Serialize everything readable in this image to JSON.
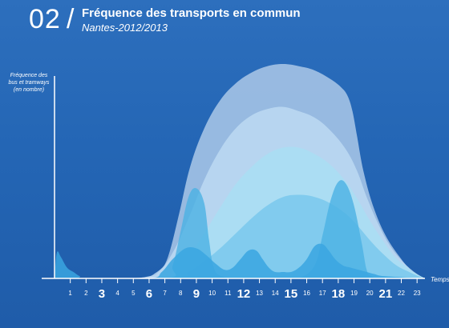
{
  "header": {
    "number": "02",
    "slash": "/",
    "title": "Fréquence des transports en commun",
    "subtitle": "Nantes-2012/2013"
  },
  "colors": {
    "background": "#2466b5",
    "axis": "#ffffff"
  },
  "chart_data": {
    "type": "area",
    "ylabel": [
      "Fréquence des",
      "bus et tramways",
      "(en nombre)"
    ],
    "xlabel": "Temps",
    "x": [
      0,
      1,
      2,
      3,
      4,
      5,
      6,
      7,
      8,
      9,
      10,
      11,
      12,
      13,
      14,
      15,
      16,
      17,
      18,
      19,
      20,
      21,
      22,
      23
    ],
    "tick_labels": [
      "1",
      "2",
      "3",
      "4",
      "5",
      "6",
      "7",
      "8",
      "9",
      "10",
      "11",
      "12",
      "13",
      "14",
      "15",
      "16",
      "17",
      "18",
      "19",
      "20",
      "21",
      "22",
      "23"
    ],
    "bold_ticks": [
      "3",
      "6",
      "9",
      "12",
      "15",
      "18",
      "21"
    ],
    "xlim": [
      0,
      23.5
    ],
    "ylim": [
      0,
      100
    ],
    "grid": false,
    "series": [
      {
        "color": "#a4c3e6",
        "opacity": 0.9,
        "x": [
          0,
          4.5,
          6,
          6.6,
          7.2,
          7.9,
          8.6,
          9.5,
          10.5,
          11.5,
          12.5,
          13.5,
          14.5,
          15.5,
          16.5,
          17.5,
          18.2,
          18.6,
          18.9,
          19.2,
          19.6,
          20.2,
          21,
          22,
          22.6,
          23,
          23.5
        ],
        "y": [
          0,
          0,
          1,
          3,
          10,
          30,
          52,
          70,
          83,
          91,
          96,
          99,
          100,
          99,
          97,
          93,
          89,
          85,
          78,
          66,
          50,
          34,
          20,
          9,
          4,
          2,
          0
        ]
      },
      {
        "color": "#bcd9f2",
        "opacity": 0.85,
        "x": [
          0,
          5,
          6.5,
          7.5,
          8.5,
          9.5,
          10.5,
          11.5,
          12.5,
          13.5,
          14.5,
          15.5,
          16.5,
          17.5,
          18.5,
          19.2,
          19.8,
          20.5,
          21.3,
          22.2,
          23,
          23.5
        ],
        "y": [
          0,
          0,
          3,
          12,
          28,
          46,
          60,
          70,
          76,
          79,
          80,
          78,
          75,
          69,
          60,
          50,
          38,
          26,
          15,
          7,
          2,
          0
        ]
      },
      {
        "color": "#a9def3",
        "opacity": 0.85,
        "x": [
          0,
          6.5,
          7.5,
          8.5,
          9.5,
          10.5,
          11.5,
          12.5,
          13.5,
          14.5,
          15.5,
          16.5,
          17.5,
          18.5,
          19.3,
          20,
          20.8,
          21.6,
          22.4,
          23,
          23.5
        ],
        "y": [
          0,
          0,
          3,
          10,
          21,
          33,
          44,
          52,
          58,
          61,
          61,
          58,
          53,
          45,
          36,
          27,
          18,
          10,
          5,
          2,
          0
        ]
      },
      {
        "color": "#6fc3eb",
        "opacity": 0.7,
        "x": [
          0,
          7.5,
          8.5,
          9.5,
          10.5,
          11.5,
          12.5,
          13.5,
          14.5,
          15.5,
          16.5,
          17.5,
          18.5,
          19.3,
          20.1,
          20.9,
          21.7,
          22.5,
          23.1,
          23.5
        ],
        "y": [
          0,
          0,
          3,
          8,
          14,
          21,
          28,
          34,
          38,
          39,
          38,
          35,
          30,
          24,
          17,
          11,
          6,
          3,
          1,
          0
        ]
      },
      {
        "color": "#4bb1e4",
        "opacity": 0.8,
        "x": [
          0,
          7,
          7.5,
          8,
          8.5,
          9,
          9.5,
          9.8,
          10.1,
          10.6,
          11.5,
          12.5,
          13.5,
          14.5,
          15.5,
          16.5,
          17,
          17.5,
          18,
          18.5,
          19,
          19.5,
          19.8,
          20.1,
          20.6,
          21.5,
          23.5
        ],
        "y": [
          0,
          0,
          6,
          22,
          38,
          42,
          35,
          18,
          5,
          1,
          0,
          0,
          0,
          0,
          0,
          6,
          20,
          36,
          45,
          44,
          34,
          16,
          4,
          1,
          0,
          0,
          0
        ]
      },
      {
        "color": "#3aa6e0",
        "opacity": 0.85,
        "x": [
          0,
          0.15,
          0.4,
          0.8,
          1.2,
          1.6,
          2,
          6,
          6.8,
          7.5,
          8.3,
          9,
          9.6,
          10.2,
          10.8,
          11.3,
          11.8,
          12.3,
          12.8,
          13.2,
          13.6,
          14,
          14.5,
          15,
          15.5,
          16,
          16.5,
          17,
          17.4,
          17.8,
          18.3,
          18.8,
          19.3,
          19.8,
          20.3,
          21,
          23.5
        ],
        "y": [
          0,
          12,
          10,
          5,
          3,
          1,
          0,
          0,
          3,
          9,
          14,
          14,
          11,
          7,
          4,
          5,
          9,
          13,
          13,
          9,
          5,
          3,
          3,
          3,
          5,
          9,
          15,
          16,
          13,
          9,
          6,
          5,
          4,
          3,
          2,
          1,
          0
        ]
      }
    ]
  }
}
